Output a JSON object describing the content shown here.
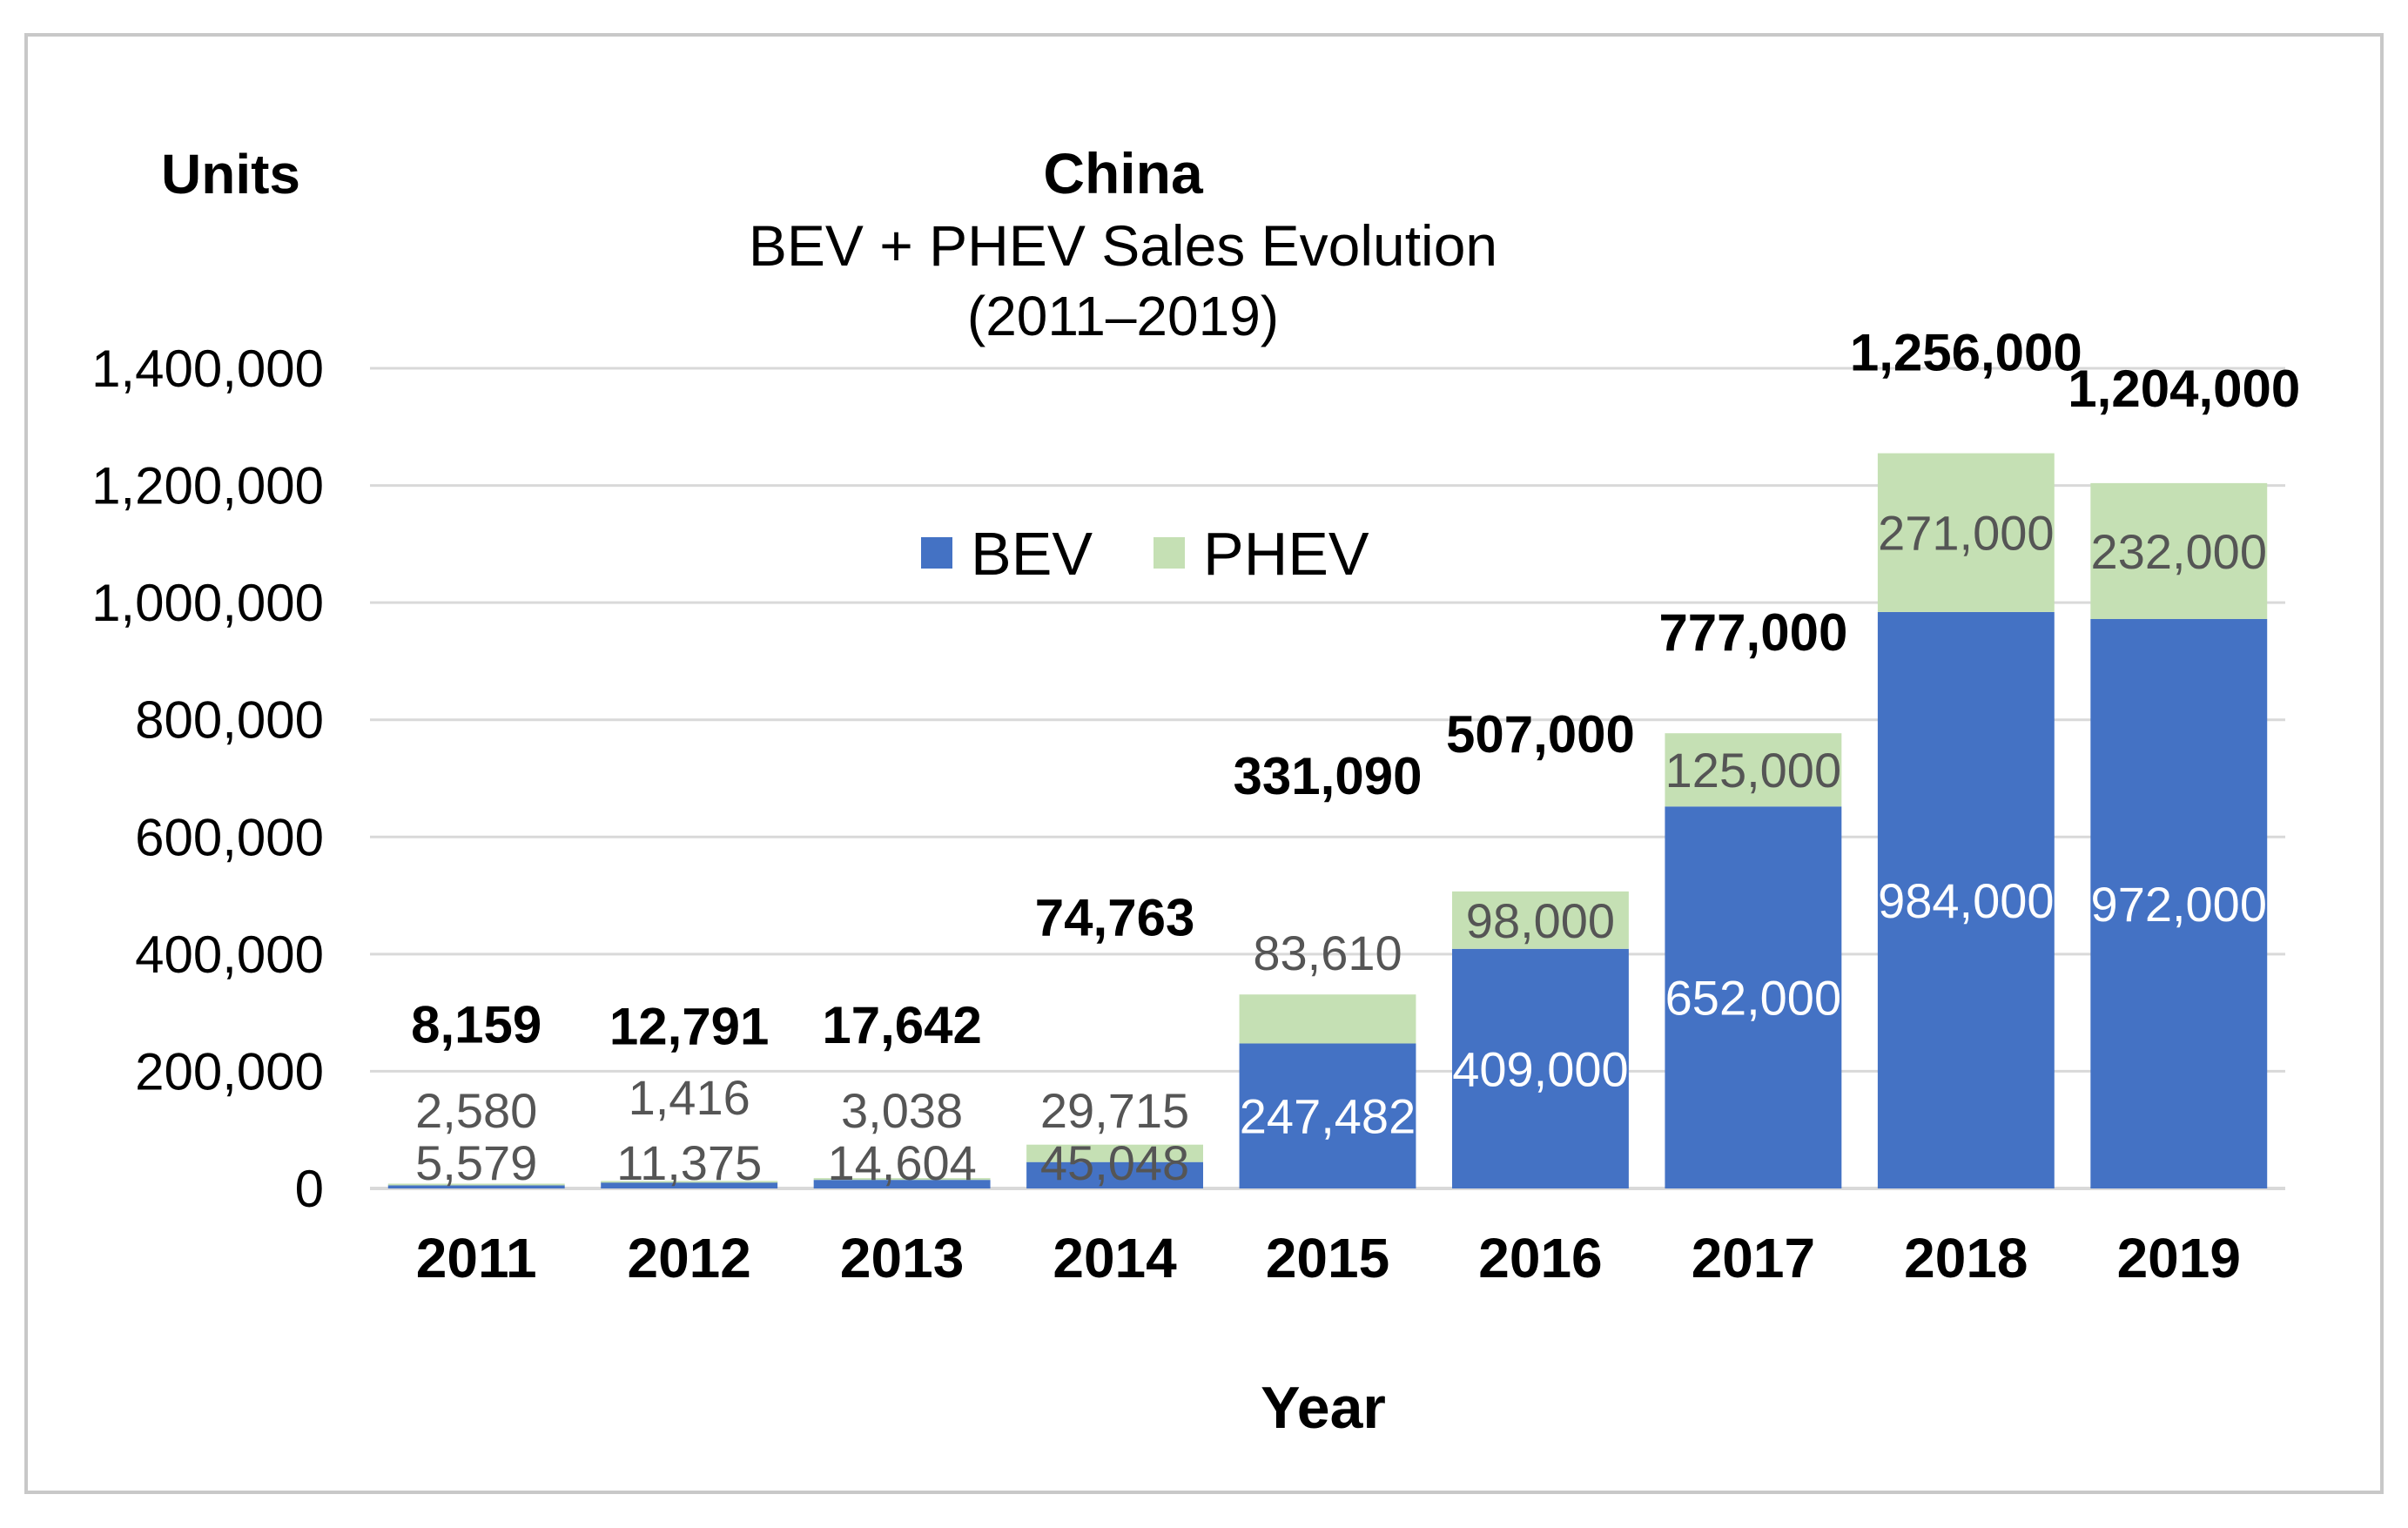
{
  "colors": {
    "bev": "#4472C4",
    "phev": "#C5E0B4",
    "grid": "#d9d9d9"
  },
  "chart_data": {
    "type": "bar",
    "stacked": true,
    "title": "China",
    "subtitle": "BEV + PHEV Sales Evolution",
    "subtitle2": "(2011–2019)",
    "ylabel": "Units",
    "xlabel": "Year",
    "ylim": [
      0,
      1400000
    ],
    "yticks": [
      "0",
      "200,000",
      "400,000",
      "600,000",
      "800,000",
      "1,000,000",
      "1,200,000",
      "1,400,000"
    ],
    "grid": true,
    "legend_position": "top-center",
    "categories": [
      "2011",
      "2012",
      "2013",
      "2014",
      "2015",
      "2016",
      "2017",
      "2018",
      "2019"
    ],
    "series": [
      {
        "name": "BEV",
        "values": [
          5579,
          11375,
          14604,
          45048,
          247482,
          409000,
          652000,
          984000,
          972000
        ],
        "labels": [
          "5,579",
          "11,375",
          "14,604",
          "45,048",
          "247,482",
          "409,000",
          "652,000",
          "984,000",
          "972,000"
        ]
      },
      {
        "name": "PHEV",
        "values": [
          2580,
          1416,
          3038,
          29715,
          83610,
          98000,
          125000,
          271000,
          232000
        ],
        "labels": [
          "2,580",
          "1,416",
          "3,038",
          "29,715",
          "83,610",
          "98,000",
          "125,000",
          "271,000",
          "232,000"
        ]
      }
    ],
    "totals": [
      8159,
      12791,
      17642,
      74763,
      331090,
      507000,
      777000,
      1256000,
      1204000
    ],
    "total_labels": [
      "8,159",
      "12,791",
      "17,642",
      "74,763",
      "331,090",
      "507,000",
      "777,000",
      "1,256,000",
      "1,204,000"
    ]
  }
}
